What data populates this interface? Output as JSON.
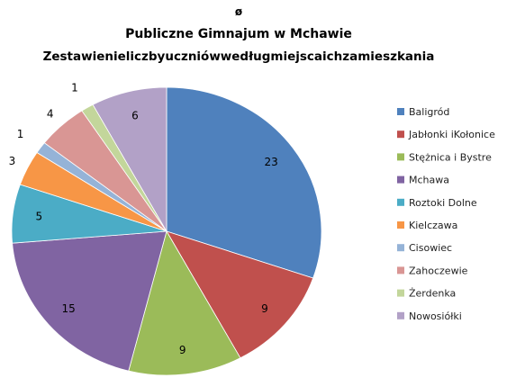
{
  "chart_data": {
    "type": "pie",
    "top_mark": "ø",
    "title": "Publiczne Gimnajum w Mchawie",
    "subtitle": "Zestawienieliczbyuczniówwedługmiejscaichzamieszkania",
    "categories": [
      "Baligród",
      "Jabłonki iKołonice",
      "Stężnica i Bystre",
      "Mchawa",
      "Roztoki Dolne",
      "Kielczawa",
      "Cisowiec",
      "Zahoczewie",
      "Żerdenka",
      "Nowosiółki"
    ],
    "values": [
      23,
      9,
      9,
      15,
      5,
      3,
      1,
      4,
      1,
      6
    ],
    "colors": [
      "#4f81bd",
      "#c0504d",
      "#9bbb59",
      "#8064a2",
      "#4bacc6",
      "#f79646",
      "#95b3d7",
      "#d99694",
      "#c3d69b",
      "#b2a1c7"
    ],
    "legend_position": "right"
  }
}
